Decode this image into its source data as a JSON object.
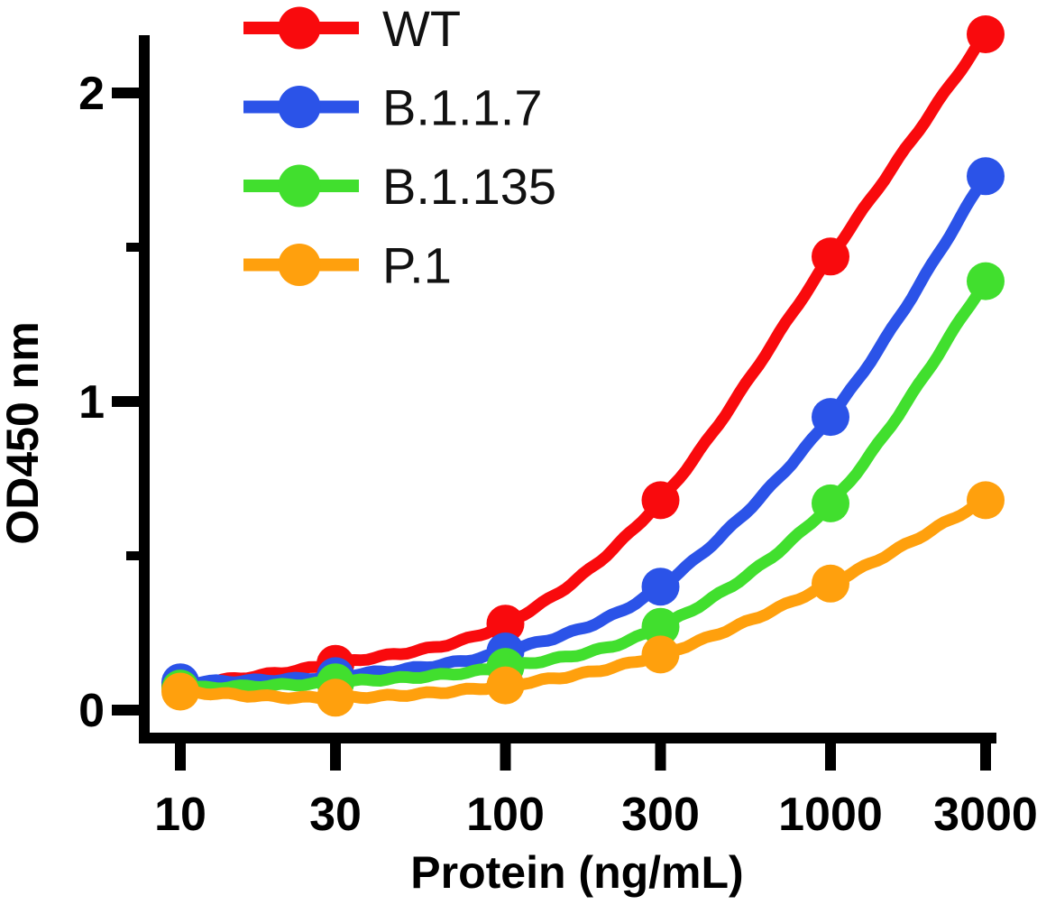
{
  "figure": {
    "background": "#ffffff",
    "axis_color": "#000000",
    "text_color": "#000000"
  },
  "chart_data": {
    "type": "line",
    "x_scale": "log",
    "x": [
      10,
      30,
      100,
      300,
      1000,
      3000
    ],
    "series": [
      {
        "name": "WT",
        "color": "#f90a0d",
        "values": [
          0.08,
          0.15,
          0.28,
          0.68,
          1.47,
          2.19
        ]
      },
      {
        "name": "B.1.1.7",
        "color": "#2b53e8",
        "values": [
          0.09,
          0.11,
          0.19,
          0.4,
          0.95,
          1.73
        ]
      },
      {
        "name": "B.1.135",
        "color": "#41df2e",
        "values": [
          0.07,
          0.09,
          0.14,
          0.27,
          0.67,
          1.39
        ]
      },
      {
        "name": "P.1",
        "color": "#ffa00d",
        "values": [
          0.06,
          0.04,
          0.08,
          0.18,
          0.41,
          0.68
        ]
      }
    ],
    "xlabel": "Protein (ng/mL)",
    "ylabel": "OD450 nm",
    "xticks": [
      10,
      30,
      100,
      300,
      1000,
      3000
    ],
    "yticks": [
      0,
      1,
      2
    ],
    "y_minor_ticks": [
      0.5,
      1.5
    ],
    "xlim": [
      10,
      3000
    ],
    "ylim": [
      0,
      2.3
    ],
    "grid": false,
    "legend_position": "top-left",
    "marker": "circle"
  }
}
